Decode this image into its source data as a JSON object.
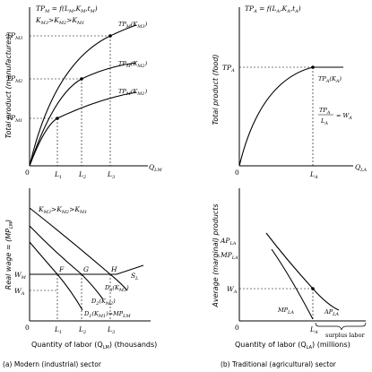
{
  "panel_a": {
    "top": {
      "equation": "TP_M = f(L_M, K_M, t_M)",
      "equation_parts": [
        "TP",
        "M",
        " = f(L",
        "M",
        ",K",
        "M",
        ",t",
        "M",
        ")"
      ],
      "ordering_parts": [
        "K",
        "M3",
        ">K",
        "M2",
        ">K",
        "M1"
      ],
      "y_axis_label": "Total product (manufactures)",
      "x_axis_label_parts": [
        "Q",
        "LM"
      ],
      "origin": "0",
      "y_ticks": [
        {
          "base": "TP",
          "sub": "M3"
        },
        {
          "base": "TP",
          "sub": "M2"
        },
        {
          "base": "TP",
          "sub": "M1"
        }
      ],
      "x_ticks": [
        {
          "base": "L",
          "sub": "1"
        },
        {
          "base": "L",
          "sub": "2"
        },
        {
          "base": "L",
          "sub": "3"
        }
      ],
      "curve_labels": [
        {
          "base": "TP",
          "sub": "M",
          "paren": "(K",
          "psub": "M3",
          "close": ")"
        },
        {
          "base": "TP",
          "sub": "M",
          "paren": "(K",
          "psub": "M2",
          "close": ")"
        },
        {
          "base": "TP",
          "sub": "M",
          "paren": "(K",
          "psub": "M1",
          "close": ")"
        }
      ]
    },
    "bottom": {
      "ordering_parts": [
        "K",
        "M3",
        ">K",
        "M2",
        ">K",
        "M1"
      ],
      "y_axis_label_parts": [
        "Real wage = (MP",
        "LM",
        ")"
      ],
      "x_axis_label_parts": [
        "Quantity of labor (Q",
        "LM",
        ") (thousands)"
      ],
      "origin": "0",
      "y_ticks": [
        {
          "base": "W",
          "sub": "M"
        },
        {
          "base": "W",
          "sub": "A"
        }
      ],
      "x_ticks": [
        {
          "base": "L",
          "sub": "1"
        },
        {
          "base": "L",
          "sub": "2"
        },
        {
          "base": "L",
          "sub": "3"
        }
      ],
      "points": [
        "F",
        "G",
        "H"
      ],
      "supply_label": {
        "base": "S",
        "sub": "L"
      },
      "demand_labels": [
        {
          "base": "D",
          "sub": "3",
          "paren": "(K",
          "psub": "M3",
          "close": ")",
          "extra": "",
          "extrasub": ""
        },
        {
          "base": "D",
          "sub": "2",
          "paren": "(K",
          "psub": "M2",
          "close": ")",
          "extra": "",
          "extrasub": ""
        },
        {
          "base": "D",
          "sub": "1",
          "paren": "(K",
          "psub": "M1",
          "close": ")",
          "extra": "=MP",
          "extrasub": "LM"
        }
      ]
    },
    "caption": "(a) Modern (industrial) sector"
  },
  "panel_b": {
    "top": {
      "equation_parts": [
        "TP",
        "A",
        " = f(L",
        "A",
        ",K",
        "A",
        ",t",
        "A",
        ")"
      ],
      "y_axis_label": "Total product (food)",
      "x_axis_label_parts": [
        "Q",
        "LA"
      ],
      "origin": "0",
      "y_tick": {
        "base": "TP",
        "sub": "A"
      },
      "x_tick": {
        "base": "L",
        "sub": "A"
      },
      "curve_label": {
        "base": "TP",
        "sub": "A",
        "paren": "(K",
        "psub": "A",
        "close": ")"
      },
      "ratio": {
        "num_base": "TP",
        "num_sub": "A",
        "den_base": "L",
        "den_sub": "A",
        "eq": "= W",
        "eq_sub": "A"
      }
    },
    "bottom": {
      "y_axis_label": "Average (marginal) products",
      "x_axis_label_parts": [
        "Quantity of labor (Q",
        "LA",
        ") (millions)"
      ],
      "origin": "0",
      "y_ticks": [
        {
          "base": "AP",
          "sub": "LA"
        },
        {
          "base": "MP",
          "sub": "LA"
        },
        {
          "base": "W",
          "sub": "A"
        }
      ],
      "x_tick": {
        "base": "L",
        "sub": "A"
      },
      "curve_labels": [
        {
          "base": "MP",
          "sub": "LA"
        },
        {
          "base": "AP",
          "sub": "LA"
        }
      ],
      "surplus_label": "surplus labor"
    },
    "caption": "(b) Traditional (agricultural) sector"
  }
}
